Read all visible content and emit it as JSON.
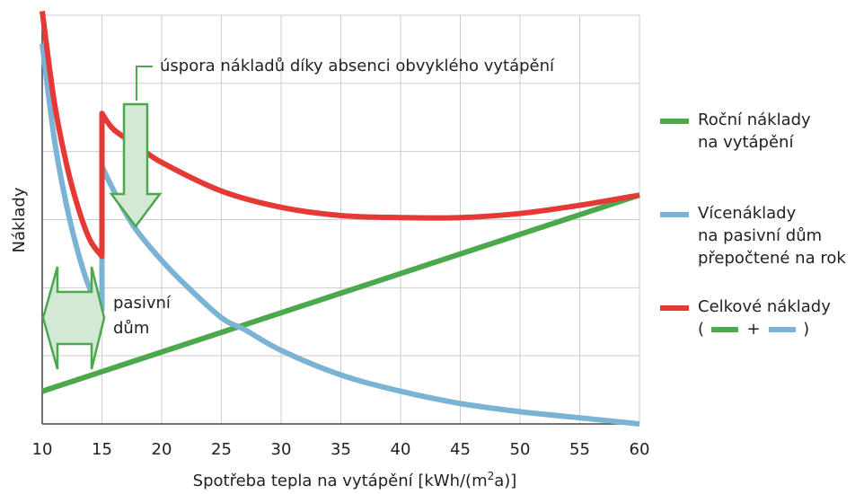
{
  "colors": {
    "heating": "#4ba84b",
    "passive_extra": "#7ab3d4",
    "total": "#e53935",
    "arrow_fill": "#d4e8d6",
    "arrow_stroke": "#4ba84b",
    "grid": "#cccccc",
    "axis": "#444444"
  },
  "chart_data": {
    "type": "line",
    "xlabel": "Spotřeba tepla na vytápění [kWh/(m²a)]",
    "ylabel": "Náklady",
    "xlim": [
      10,
      60
    ],
    "ylim": [
      0,
      100
    ],
    "xticks": [
      10,
      15,
      20,
      25,
      30,
      35,
      40,
      45,
      50,
      55,
      60
    ],
    "ytick_labels_shown": false,
    "grid": "vertical and horizontal lines",
    "legend_position": "right",
    "series": [
      {
        "name": "Roční náklady na vytápění",
        "color": "#4ba84b",
        "x": [
          10,
          60
        ],
        "y": [
          8,
          56
        ]
      },
      {
        "name": "Vícenáklady na pasivní dům přepočtené na rok",
        "color": "#7ab3d4",
        "segments": [
          {
            "x": [
              10,
              11,
              12,
              13,
              14,
              15
            ],
            "y": [
              93,
              70,
              54,
              42,
              33,
              28
            ]
          },
          {
            "x": [
              15,
              16,
              17,
              18,
              20,
              22,
              25,
              27,
              30,
              35,
              40,
              45,
              50,
              55,
              60
            ],
            "y": [
              63,
              57,
              51.5,
              47,
              40,
              34,
              26,
              23,
              18,
              12,
              8,
              5,
              3,
              1.5,
              0
            ]
          }
        ]
      },
      {
        "name": "Celkové náklady",
        "color": "#e53935",
        "segments": [
          {
            "x": [
              10,
              11,
              12,
              13,
              14,
              15
            ],
            "y": [
              101,
              79,
              64,
              53,
              45,
              41
            ]
          },
          {
            "x": [
              15,
              16,
              18,
              20,
              25,
              30,
              35,
              40,
              45,
              50,
              55,
              60
            ],
            "y": [
              76,
              72,
              68,
              64,
              57,
              53,
              51,
              50.5,
              50.5,
              51.5,
              53.5,
              56
            ]
          }
        ]
      }
    ],
    "annotations": [
      {
        "text": "úspora nákladů díky absenci obvyklého vytápění",
        "x": 18.5
      },
      {
        "text": "pasivní dům",
        "x": 12.5
      }
    ]
  },
  "legend": {
    "items": [
      {
        "lines": [
          "Roční náklady",
          "na vytápění"
        ]
      },
      {
        "lines": [
          "Vícenáklady",
          "na pasivní dům",
          "přepočtené na rok"
        ]
      },
      {
        "lines": [
          "Celkové náklady"
        ]
      }
    ],
    "formula": {
      "open": "(",
      "plus": "+",
      "close": ")"
    }
  },
  "annotations_text": {
    "savings": "úspora nákladů díky absenci obvyklého vytápění",
    "passive_line1": "pasivní",
    "passive_line2": "dům"
  },
  "axis_text": {
    "xlabel_prefix": "Spotřeba tepla na vytápění [kWh/(m",
    "xlabel_sup": "2",
    "xlabel_suffix": "a)]",
    "ylabel": "Náklady"
  }
}
